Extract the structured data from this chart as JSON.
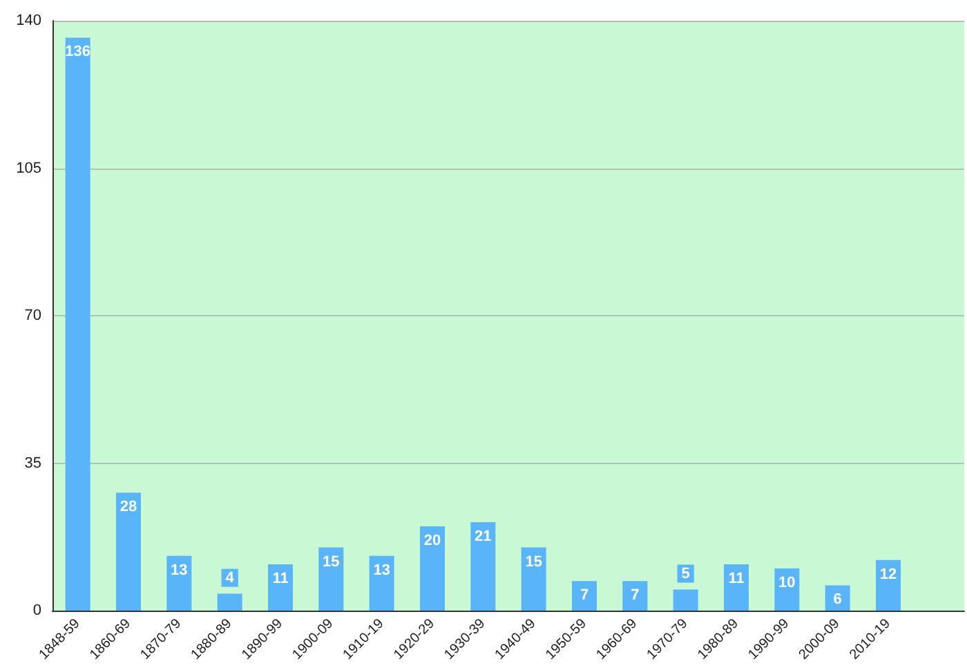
{
  "chart_data": {
    "type": "bar",
    "categories": [
      "1848-59",
      "1860-69",
      "1870-79",
      "1880-89",
      "1890-99",
      "1900-09",
      "1910-19",
      "1920-29",
      "1930-39",
      "1940-49",
      "1950-59",
      "1960-69",
      "1970-79",
      "1980-89",
      "1990-99",
      "2000-09",
      "2010-19",
      null
    ],
    "values": [
      136,
      28,
      13,
      4,
      11,
      15,
      13,
      20,
      21,
      15,
      7,
      7,
      5,
      11,
      10,
      6,
      12,
      null
    ],
    "color": "#5ab4f8",
    "ylim": [
      0,
      140
    ],
    "yticks": [
      0,
      35,
      70,
      105,
      140
    ],
    "grid": "y",
    "data_labels": true
  }
}
